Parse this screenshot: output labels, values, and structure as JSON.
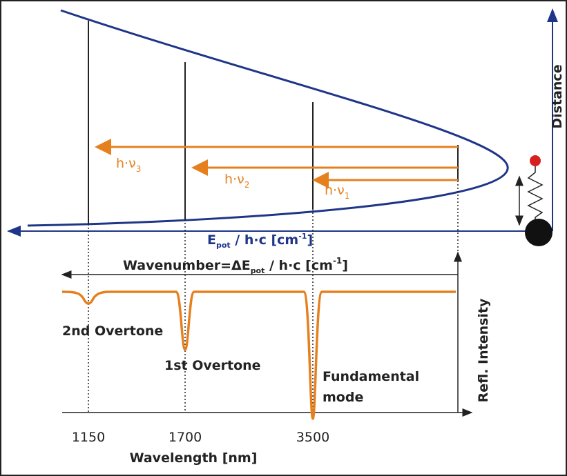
{
  "upper": {
    "axis_label": {
      "main": "E",
      "sub": "pot",
      "rest": " / h·c   [cm",
      "sup": "-1",
      "end": "]"
    },
    "distance_label": "Distance",
    "transitions": [
      {
        "text": "h·ν",
        "sub": "3"
      },
      {
        "text": "h·ν",
        "sub": "2"
      },
      {
        "text": "h·ν",
        "sub": "1"
      }
    ]
  },
  "lower": {
    "title": {
      "main": "Wavenumber=ΔE",
      "sub": "pot",
      "rest": " / h·c   [cm",
      "sup": "-1",
      "end": "]"
    },
    "y_label": "Refl. Intensity",
    "x_label": "Wavelength [nm]",
    "ticks": [
      "1150",
      "1700",
      "3500"
    ],
    "bands": [
      "2nd Overtone",
      "1st Overtone",
      "Fundamental",
      "mode"
    ]
  }
}
